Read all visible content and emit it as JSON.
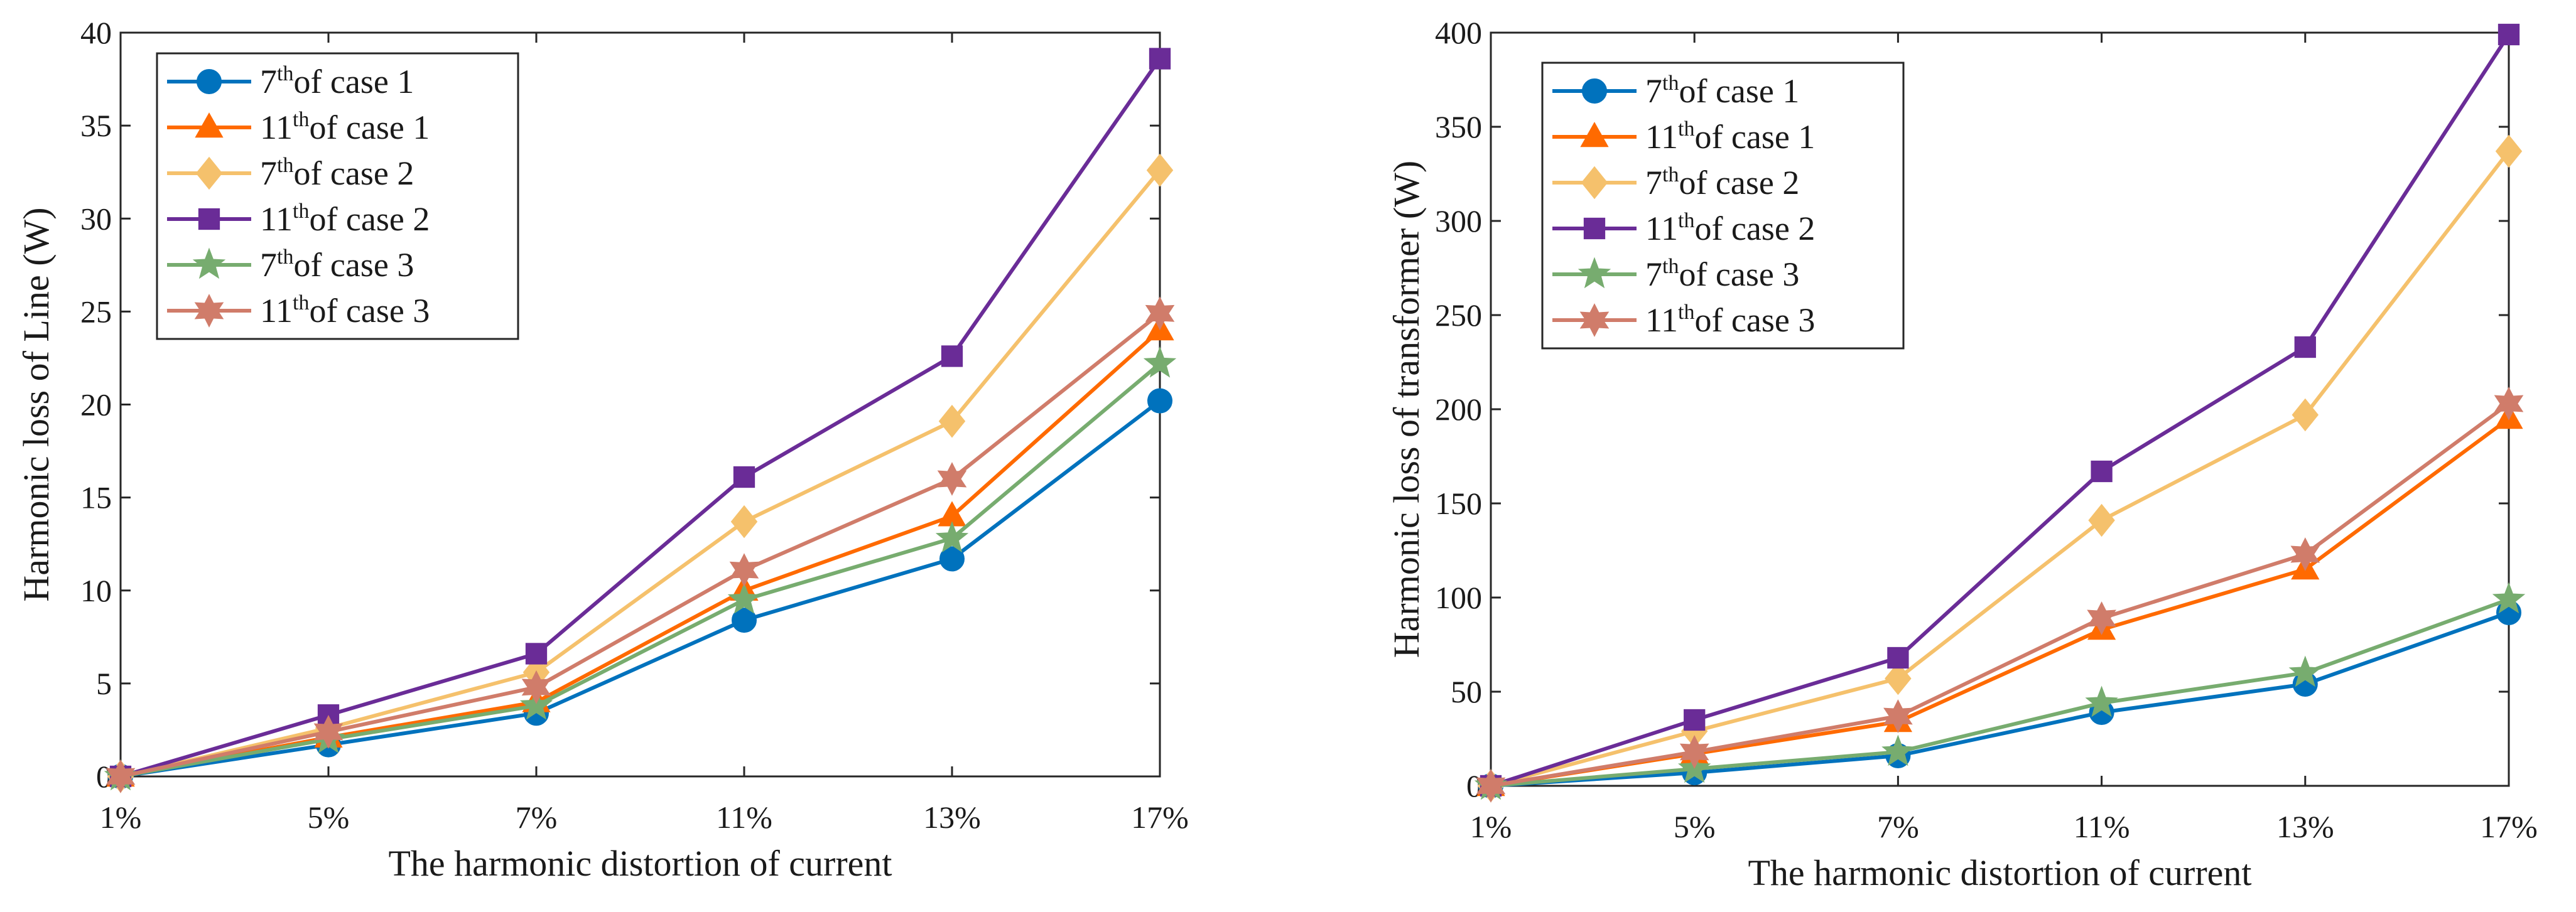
{
  "chart_data": [
    {
      "type": "line",
      "title": "",
      "xlabel": "The harmonic distortion of current",
      "ylabel": "Harmonic loss of Line (W)",
      "categories": [
        "1%",
        "5%",
        "7%",
        "11%",
        "13%",
        "17%"
      ],
      "ylim": [
        0,
        40
      ],
      "yticks": [
        0,
        5,
        10,
        15,
        20,
        25,
        30,
        35,
        40
      ],
      "grid": false,
      "legend_position": "top-left",
      "series": [
        {
          "name": "7th of case 1",
          "order": "7",
          "sup": "th",
          "label_rest": "of case 1",
          "marker": "circle",
          "color": "#0072BD",
          "values": [
            0,
            1.7,
            3.4,
            8.4,
            11.7,
            20.2
          ]
        },
        {
          "name": "11th of case 1",
          "order": "11",
          "sup": "th",
          "label_rest": "of case 1",
          "marker": "triangle",
          "color": "#FF6A00",
          "values": [
            0,
            2.1,
            4.0,
            10.0,
            14.0,
            24.0
          ]
        },
        {
          "name": "7th of case 2",
          "order": "7",
          "sup": "th",
          "label_rest": "of case 2",
          "marker": "diamond",
          "color": "#F5C16C",
          "values": [
            0,
            2.6,
            5.6,
            13.7,
            19.1,
            32.6
          ]
        },
        {
          "name": "11th of case 2",
          "order": "11",
          "sup": "th",
          "label_rest": "of case 2",
          "marker": "square",
          "color": "#6A2C97",
          "values": [
            0,
            3.3,
            6.6,
            16.1,
            22.6,
            38.6
          ]
        },
        {
          "name": "7th of case 3",
          "order": "7",
          "sup": "th",
          "label_rest": "of case 3",
          "marker": "star5",
          "color": "#77AC6F",
          "values": [
            0,
            2.0,
            3.8,
            9.5,
            12.8,
            22.2
          ]
        },
        {
          "name": "11th of case 3",
          "order": "11",
          "sup": "th",
          "label_rest": "of case 3",
          "marker": "star6",
          "color": "#D07C6A",
          "values": [
            0,
            2.4,
            4.8,
            11.1,
            16.0,
            24.9
          ]
        }
      ]
    },
    {
      "type": "line",
      "title": "",
      "xlabel": "The harmonic distortion of current",
      "ylabel": "Harmonic loss of transformer (W)",
      "categories": [
        "1%",
        "5%",
        "7%",
        "11%",
        "13%",
        "17%"
      ],
      "ylim": [
        0,
        400
      ],
      "yticks": [
        0,
        50,
        100,
        150,
        200,
        250,
        300,
        350,
        400
      ],
      "grid": false,
      "legend_position": "top-left",
      "series": [
        {
          "name": "7th of case 1",
          "order": "7",
          "sup": "th",
          "label_rest": "of case 1",
          "marker": "circle",
          "color": "#0072BD",
          "values": [
            0,
            7,
            16,
            39,
            54,
            92
          ]
        },
        {
          "name": "11th of case 1",
          "order": "11",
          "sup": "th",
          "label_rest": "of case 1",
          "marker": "triangle",
          "color": "#FF6A00",
          "values": [
            0,
            17,
            34,
            83,
            115,
            195
          ]
        },
        {
          "name": "7th of case 2",
          "order": "7",
          "sup": "th",
          "label_rest": "of case 2",
          "marker": "diamond",
          "color": "#F5C16C",
          "values": [
            0,
            29,
            57,
            141,
            197,
            337
          ]
        },
        {
          "name": "11th of case 2",
          "order": "11",
          "sup": "th",
          "label_rest": "of case 2",
          "marker": "square",
          "color": "#6A2C97",
          "values": [
            0,
            35,
            68,
            167,
            233,
            399
          ]
        },
        {
          "name": "7th of case 3",
          "order": "7",
          "sup": "th",
          "label_rest": "of case 3",
          "marker": "star5",
          "color": "#77AC6F",
          "values": [
            0,
            9,
            18,
            44,
            60,
            99
          ]
        },
        {
          "name": "11th of case 3",
          "order": "11",
          "sup": "th",
          "label_rest": "of case 3",
          "marker": "star6",
          "color": "#D07C6A",
          "values": [
            0,
            18,
            37,
            89,
            123,
            203
          ]
        }
      ]
    }
  ]
}
